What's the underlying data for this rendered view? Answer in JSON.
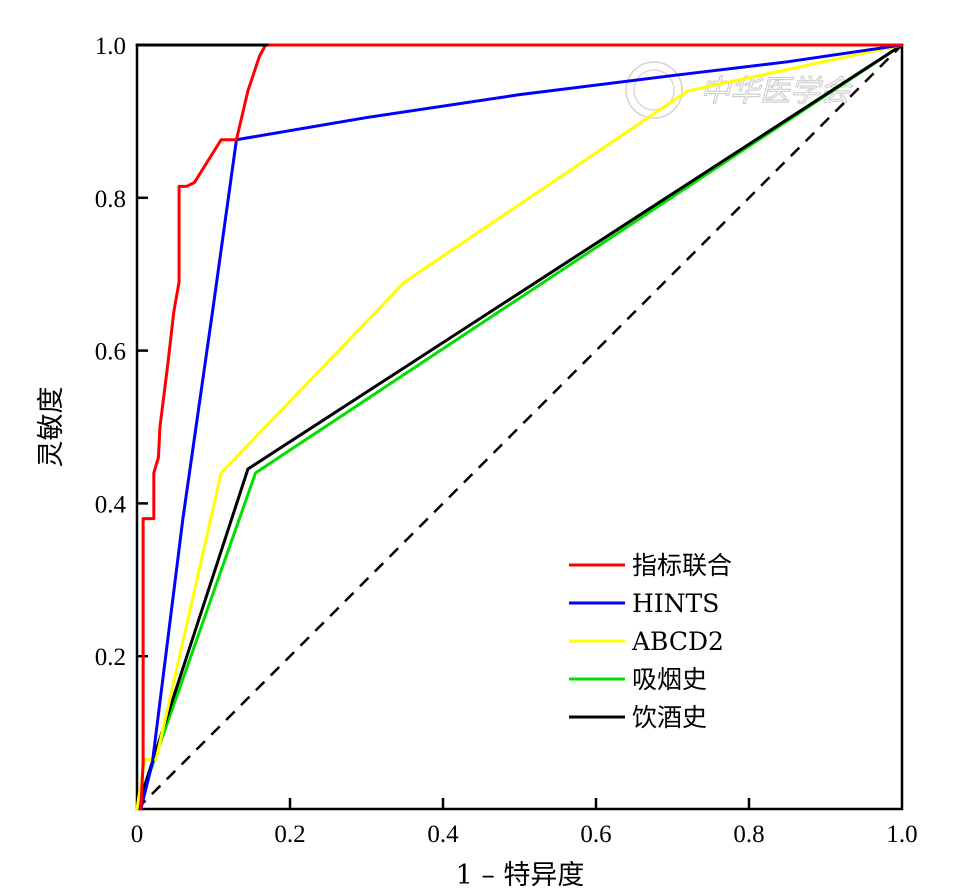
{
  "chart_data": {
    "type": "line",
    "title": "",
    "xlabel": "1 – 特异度",
    "ylabel": "灵敏度",
    "xlim": [
      0,
      1.0
    ],
    "ylim": [
      0,
      1.0
    ],
    "x_ticks": [
      0,
      0.2,
      0.4,
      0.6,
      0.8,
      1.0
    ],
    "x_tick_labels": [
      "0",
      "0.2",
      "0.4",
      "0.6",
      "0.8",
      "1.0"
    ],
    "y_ticks": [
      0.2,
      0.4,
      0.6,
      0.8,
      1.0
    ],
    "y_tick_labels": [
      "0.2",
      "0.4",
      "0.6",
      "0.8",
      "1.0"
    ],
    "grid": false,
    "legend_position": "bottom-right",
    "watermark": "中华医学会",
    "reference_line": {
      "x": [
        0,
        1
      ],
      "y": [
        0,
        1
      ],
      "style": "dashed",
      "color": "#000000"
    },
    "series": [
      {
        "name": "指标联合",
        "color": "#ff0000",
        "x": [
          0.005,
          0.008,
          0.008,
          0.012,
          0.022,
          0.022,
          0.028,
          0.03,
          0.04,
          0.048,
          0.055,
          0.055,
          0.065,
          0.075,
          0.11,
          0.13,
          0.145,
          0.16,
          0.168,
          0.5,
          1.0
        ],
        "y": [
          0.0,
          0.06,
          0.38,
          0.38,
          0.38,
          0.44,
          0.46,
          0.5,
          0.58,
          0.65,
          0.69,
          0.815,
          0.815,
          0.82,
          0.876,
          0.876,
          0.94,
          0.985,
          1.0,
          1.0,
          1.0
        ]
      },
      {
        "name": "HINTS",
        "color": "#0000ff",
        "x": [
          0.005,
          0.02,
          0.06,
          0.1,
          0.13,
          0.3,
          0.5,
          0.7,
          0.85,
          1.0
        ],
        "y": [
          0.0,
          0.06,
          0.38,
          0.66,
          0.876,
          0.905,
          0.935,
          0.96,
          0.978,
          1.0
        ]
      },
      {
        "name": "ABCD2",
        "color": "#ffff00",
        "x": [
          0.0,
          0.01,
          0.025,
          0.11,
          0.35,
          0.72,
          1.0
        ],
        "y": [
          0.0,
          0.065,
          0.065,
          0.44,
          0.69,
          0.94,
          1.0
        ]
      },
      {
        "name": "吸烟史",
        "color": "#00e000",
        "x": [
          0.0,
          0.155,
          1.0
        ],
        "y": [
          0.0,
          0.44,
          1.0
        ]
      },
      {
        "name": "饮酒史",
        "color": "#000000",
        "x": [
          0.0,
          0.145,
          1.0
        ],
        "y": [
          0.0,
          0.445,
          1.0
        ]
      },
      {
        "name": "",
        "color": "#000000",
        "x": [
          0.0,
          0.17
        ],
        "y": [
          1.0,
          1.0
        ]
      }
    ]
  }
}
